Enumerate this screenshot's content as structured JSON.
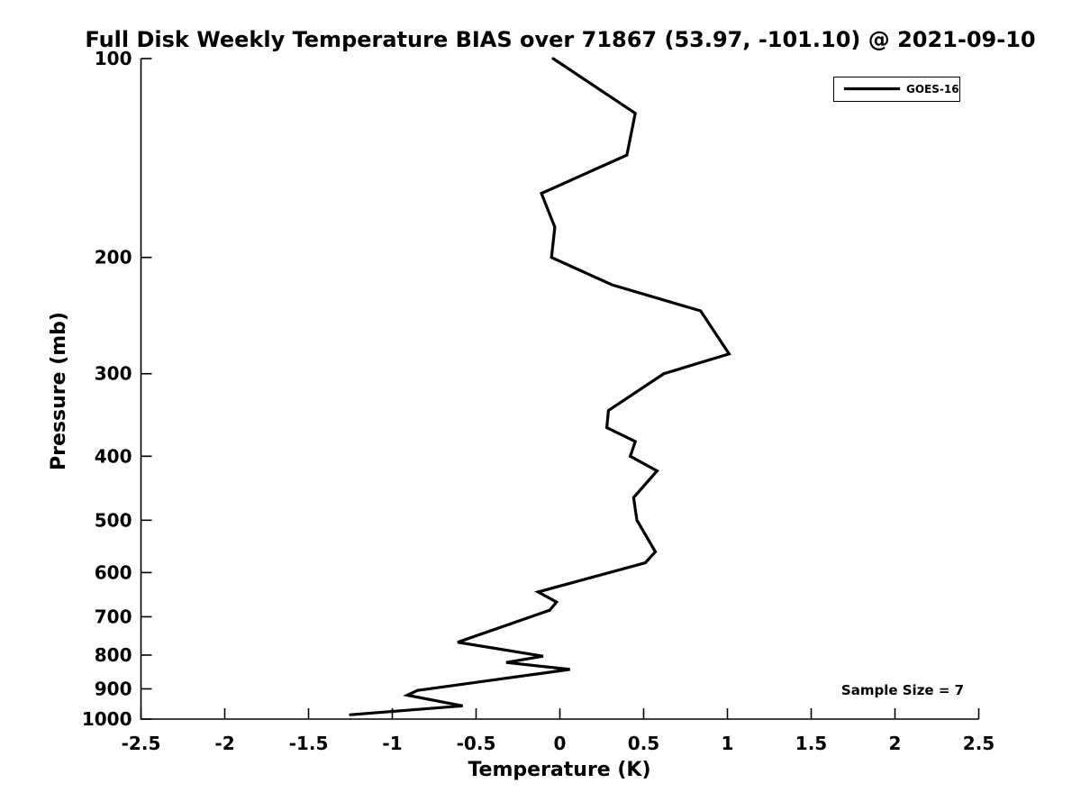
{
  "chart_data": {
    "type": "line",
    "title": "Full Disk Weekly Temperature BIAS over 71867 (53.97, -101.10) @ 2021-09-10",
    "xlabel": "Temperature (K)",
    "ylabel": "Pressure (mb)",
    "xlim": [
      -2.5,
      2.5
    ],
    "x_ticks": [
      -2.5,
      -2,
      -1.5,
      -1,
      -0.5,
      0,
      0.5,
      1,
      1.5,
      2,
      2.5
    ],
    "x_tick_labels": [
      "-2.5",
      "-2",
      "-1.5",
      "-1",
      "-0.5",
      "0",
      "0.5",
      "1",
      "1.5",
      "2",
      "2.5"
    ],
    "y_scale": "log",
    "y_inverted": true,
    "ylim": [
      100,
      1000
    ],
    "y_ticks": [
      100,
      200,
      300,
      400,
      500,
      600,
      700,
      800,
      900,
      1000
    ],
    "y_tick_labels": [
      "100",
      "200",
      "300",
      "400",
      "500",
      "600",
      "700",
      "800",
      "900",
      "1000"
    ],
    "grid": false,
    "line_color": "#000000",
    "legend": {
      "position": "top-right",
      "entries": [
        {
          "label": "GOES-16",
          "color": "#000000"
        }
      ]
    },
    "annotations": [
      {
        "text": "Sample Size = 7",
        "color": "#000000"
      }
    ],
    "series": [
      {
        "name": "GOES-16",
        "color": "#000000",
        "pressure_mb": [
          100,
          121,
          140,
          160,
          180,
          200,
          220,
          241,
          280,
          300,
          341,
          362,
          380,
          400,
          421,
          462,
          481,
          500,
          558,
          580,
          642,
          665,
          684,
          765,
          803,
          821,
          841,
          905,
          920,
          955,
          985
        ],
        "bias_k": [
          -0.04,
          0.45,
          0.4,
          -0.11,
          -0.03,
          -0.05,
          0.31,
          0.84,
          1.01,
          0.62,
          0.29,
          0.28,
          0.45,
          0.42,
          0.58,
          0.44,
          0.45,
          0.46,
          0.57,
          0.51,
          -0.13,
          -0.02,
          -0.06,
          -0.61,
          -0.1,
          -0.32,
          0.06,
          -0.85,
          -0.91,
          -0.58,
          -1.25
        ]
      }
    ]
  }
}
